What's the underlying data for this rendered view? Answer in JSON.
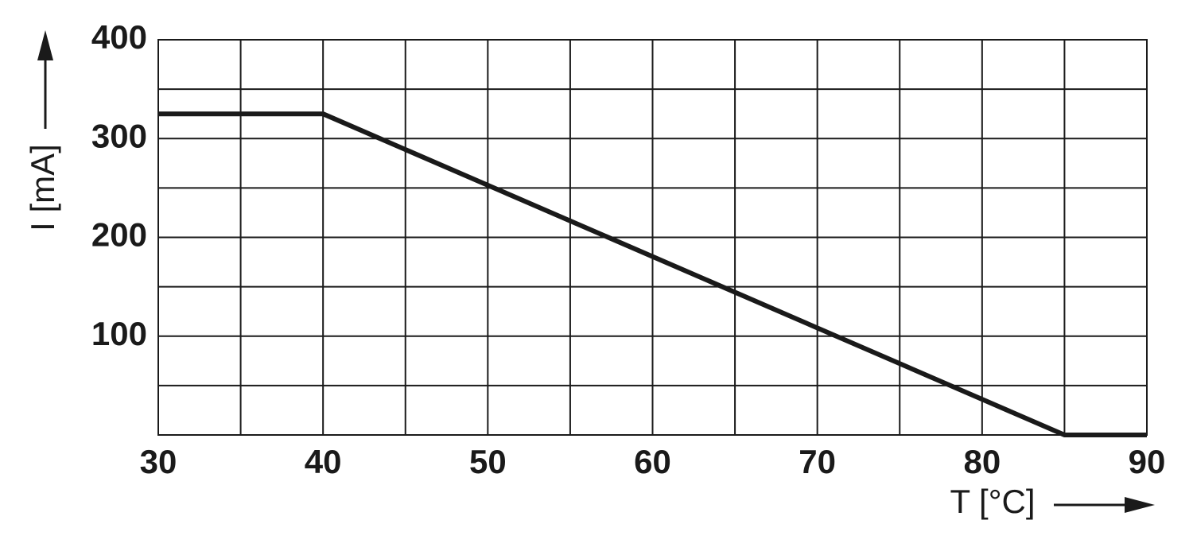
{
  "chart_data": {
    "type": "line",
    "x_label": "T [°C]",
    "y_label": "I [mA]",
    "x": [
      30,
      40,
      85,
      90
    ],
    "series": [
      {
        "color": "#1a1a1a",
        "values": [
          325,
          325,
          0,
          0
        ]
      }
    ],
    "xlim": [
      30,
      90
    ],
    "xticks": [
      30,
      40,
      50,
      60,
      70,
      80,
      90
    ],
    "ylim": [
      0,
      400
    ],
    "yticks": [
      100,
      200,
      300,
      400
    ],
    "grid": true,
    "xgrid": [
      35,
      45,
      55,
      65,
      75,
      85
    ],
    "ygrid": [
      50,
      150,
      250,
      350
    ]
  }
}
